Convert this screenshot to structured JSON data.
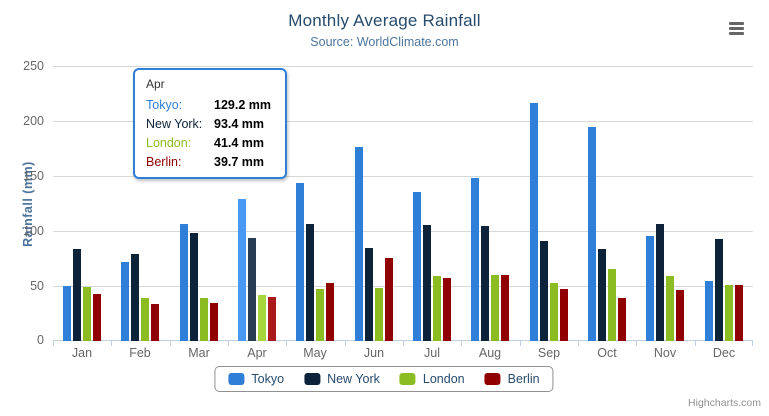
{
  "chart_data": {
    "type": "bar",
    "title": "Monthly Average Rainfall",
    "subtitle": "Source: WorldClimate.com",
    "ylabel": "Rainfall (mm)",
    "xlabel": "",
    "ylim": [
      0,
      250
    ],
    "ytick_interval": 50,
    "ytick_labels": [
      "0",
      "50",
      "100",
      "150",
      "200",
      "250"
    ],
    "grid": true,
    "legend_position": "bottom-center",
    "categories": [
      "Jan",
      "Feb",
      "Mar",
      "Apr",
      "May",
      "Jun",
      "Jul",
      "Aug",
      "Sep",
      "Oct",
      "Nov",
      "Dec"
    ],
    "series": [
      {
        "name": "Tokyo",
        "color": "#2f7ed8",
        "values": [
          49.9,
          71.5,
          106.4,
          129.2,
          144.0,
          176.0,
          135.6,
          148.5,
          216.4,
          194.1,
          95.6,
          54.4
        ]
      },
      {
        "name": "New York",
        "color": "#0d233a",
        "values": [
          83.6,
          78.8,
          98.5,
          93.4,
          106.0,
          84.5,
          105.0,
          104.3,
          91.2,
          83.5,
          106.6,
          92.3
        ]
      },
      {
        "name": "London",
        "color": "#8bbc21",
        "values": [
          48.9,
          38.8,
          39.3,
          41.4,
          47.0,
          48.3,
          59.0,
          59.6,
          52.4,
          65.2,
          59.3,
          51.2
        ]
      },
      {
        "name": "Berlin",
        "color": "#910000",
        "values": [
          42.4,
          33.2,
          34.5,
          39.7,
          52.6,
          75.5,
          57.4,
          60.4,
          47.6,
          39.1,
          46.8,
          51.1
        ]
      }
    ],
    "highlighted_category": "Apr",
    "highlighted_index": 3,
    "highlight_brighten": 0.1
  },
  "tooltip": {
    "header": "Apr",
    "rows": [
      {
        "label": "Tokyo:",
        "value": "129.2 mm",
        "color": "#2f7ed8"
      },
      {
        "label": "New York:",
        "value": "93.4 mm",
        "color": "#0d233a"
      },
      {
        "label": "London:",
        "value": "41.4 mm",
        "color": "#8bbc21"
      },
      {
        "label": "Berlin:",
        "value": "39.7 mm",
        "color": "#910000"
      }
    ]
  },
  "credits": {
    "label": "Highcharts.com"
  },
  "icons": {
    "export_menu": "hamburger-menu-icon"
  },
  "colors": {
    "title": "#274b6d",
    "subtitle": "#4d759e",
    "axis_label": "#666666",
    "axis_title": "#4d759e",
    "gridline": "#d8d8d8",
    "axis_line": "#c0d0e0",
    "legend_border": "#909090",
    "legend_text": "#274b6d",
    "tooltip_border": "#2f7ed8",
    "credits_text": "#909090"
  }
}
